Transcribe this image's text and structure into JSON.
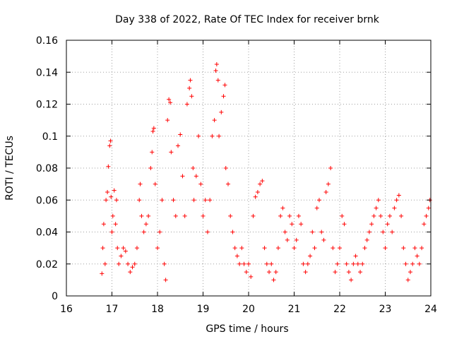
{
  "chart_data": {
    "type": "scatter",
    "title": "Day 338 of 2022, Rate Of TEC Index for receiver brnk",
    "xlabel": "GPS time / hours",
    "ylabel": "ROTI / TECUs",
    "xlim": [
      16,
      24
    ],
    "ylim": [
      0,
      0.16
    ],
    "xticks": [
      "16",
      "17",
      "18",
      "19",
      "20",
      "21",
      "22",
      "23",
      "24"
    ],
    "yticks": [
      "0",
      "0.02",
      "0.04",
      "0.06",
      "0.08",
      "0.1",
      "0.12",
      "0.14",
      "0.16"
    ],
    "grid": true,
    "marker": "+",
    "color": "#ff0000",
    "points": [
      [
        16.78,
        0.014
      ],
      [
        16.8,
        0.03
      ],
      [
        16.82,
        0.045
      ],
      [
        16.85,
        0.02
      ],
      [
        16.87,
        0.06
      ],
      [
        16.9,
        0.065
      ],
      [
        16.92,
        0.081
      ],
      [
        16.95,
        0.094
      ],
      [
        16.97,
        0.097
      ],
      [
        16.98,
        0.062
      ],
      [
        17.0,
        0.04
      ],
      [
        17.02,
        0.05
      ],
      [
        17.05,
        0.066
      ],
      [
        17.08,
        0.045
      ],
      [
        17.1,
        0.06
      ],
      [
        17.12,
        0.03
      ],
      [
        17.15,
        0.02
      ],
      [
        17.2,
        0.025
      ],
      [
        17.25,
        0.03
      ],
      [
        17.3,
        0.028
      ],
      [
        17.35,
        0.02
      ],
      [
        17.4,
        0.015
      ],
      [
        17.45,
        0.018
      ],
      [
        17.5,
        0.02
      ],
      [
        17.55,
        0.03
      ],
      [
        17.6,
        0.06
      ],
      [
        17.62,
        0.07
      ],
      [
        17.65,
        0.05
      ],
      [
        17.7,
        0.04
      ],
      [
        17.75,
        0.045
      ],
      [
        17.8,
        0.05
      ],
      [
        17.85,
        0.08
      ],
      [
        17.88,
        0.09
      ],
      [
        17.9,
        0.103
      ],
      [
        17.92,
        0.105
      ],
      [
        17.95,
        0.07
      ],
      [
        18.0,
        0.03
      ],
      [
        18.05,
        0.04
      ],
      [
        18.1,
        0.06
      ],
      [
        18.15,
        0.02
      ],
      [
        18.18,
        0.01
      ],
      [
        18.22,
        0.11
      ],
      [
        18.25,
        0.123
      ],
      [
        18.28,
        0.121
      ],
      [
        18.3,
        0.09
      ],
      [
        18.35,
        0.06
      ],
      [
        18.4,
        0.05
      ],
      [
        18.45,
        0.094
      ],
      [
        18.5,
        0.101
      ],
      [
        18.55,
        0.075
      ],
      [
        18.6,
        0.05
      ],
      [
        18.65,
        0.12
      ],
      [
        18.7,
        0.13
      ],
      [
        18.72,
        0.135
      ],
      [
        18.75,
        0.125
      ],
      [
        18.78,
        0.08
      ],
      [
        18.8,
        0.06
      ],
      [
        18.85,
        0.075
      ],
      [
        18.9,
        0.1
      ],
      [
        18.95,
        0.07
      ],
      [
        19.0,
        0.05
      ],
      [
        19.05,
        0.06
      ],
      [
        19.1,
        0.04
      ],
      [
        19.15,
        0.06
      ],
      [
        19.2,
        0.1
      ],
      [
        19.25,
        0.11
      ],
      [
        19.28,
        0.141
      ],
      [
        19.3,
        0.145
      ],
      [
        19.33,
        0.135
      ],
      [
        19.35,
        0.1
      ],
      [
        19.4,
        0.115
      ],
      [
        19.45,
        0.125
      ],
      [
        19.48,
        0.132
      ],
      [
        19.5,
        0.08
      ],
      [
        19.55,
        0.07
      ],
      [
        19.6,
        0.05
      ],
      [
        19.65,
        0.04
      ],
      [
        19.7,
        0.03
      ],
      [
        19.75,
        0.025
      ],
      [
        19.8,
        0.02
      ],
      [
        19.85,
        0.03
      ],
      [
        19.9,
        0.02
      ],
      [
        19.95,
        0.015
      ],
      [
        20.0,
        0.02
      ],
      [
        20.05,
        0.012
      ],
      [
        20.1,
        0.05
      ],
      [
        20.15,
        0.062
      ],
      [
        20.2,
        0.065
      ],
      [
        20.25,
        0.07
      ],
      [
        20.3,
        0.072
      ],
      [
        20.35,
        0.03
      ],
      [
        20.4,
        0.02
      ],
      [
        20.45,
        0.015
      ],
      [
        20.5,
        0.02
      ],
      [
        20.55,
        0.01
      ],
      [
        20.6,
        0.015
      ],
      [
        20.65,
        0.03
      ],
      [
        20.7,
        0.05
      ],
      [
        20.75,
        0.055
      ],
      [
        20.8,
        0.04
      ],
      [
        20.85,
        0.035
      ],
      [
        20.9,
        0.05
      ],
      [
        20.95,
        0.045
      ],
      [
        21.0,
        0.03
      ],
      [
        21.05,
        0.035
      ],
      [
        21.1,
        0.05
      ],
      [
        21.15,
        0.045
      ],
      [
        21.2,
        0.02
      ],
      [
        21.25,
        0.015
      ],
      [
        21.3,
        0.02
      ],
      [
        21.35,
        0.025
      ],
      [
        21.4,
        0.04
      ],
      [
        21.45,
        0.03
      ],
      [
        21.5,
        0.055
      ],
      [
        21.55,
        0.06
      ],
      [
        21.6,
        0.04
      ],
      [
        21.65,
        0.035
      ],
      [
        21.7,
        0.065
      ],
      [
        21.75,
        0.07
      ],
      [
        21.8,
        0.08
      ],
      [
        21.85,
        0.03
      ],
      [
        21.9,
        0.015
      ],
      [
        21.95,
        0.02
      ],
      [
        22.0,
        0.03
      ],
      [
        22.05,
        0.05
      ],
      [
        22.1,
        0.045
      ],
      [
        22.15,
        0.02
      ],
      [
        22.2,
        0.015
      ],
      [
        22.25,
        0.01
      ],
      [
        22.3,
        0.02
      ],
      [
        22.35,
        0.025
      ],
      [
        22.4,
        0.02
      ],
      [
        22.45,
        0.015
      ],
      [
        22.5,
        0.02
      ],
      [
        22.55,
        0.03
      ],
      [
        22.6,
        0.035
      ],
      [
        22.65,
        0.04
      ],
      [
        22.7,
        0.045
      ],
      [
        22.75,
        0.05
      ],
      [
        22.8,
        0.055
      ],
      [
        22.85,
        0.06
      ],
      [
        22.9,
        0.05
      ],
      [
        22.95,
        0.04
      ],
      [
        23.0,
        0.03
      ],
      [
        23.05,
        0.045
      ],
      [
        23.1,
        0.05
      ],
      [
        23.15,
        0.04
      ],
      [
        23.2,
        0.055
      ],
      [
        23.25,
        0.06
      ],
      [
        23.3,
        0.063
      ],
      [
        23.35,
        0.05
      ],
      [
        23.4,
        0.03
      ],
      [
        23.45,
        0.02
      ],
      [
        23.5,
        0.01
      ],
      [
        23.55,
        0.015
      ],
      [
        23.6,
        0.02
      ],
      [
        23.65,
        0.03
      ],
      [
        23.7,
        0.025
      ],
      [
        23.75,
        0.02
      ],
      [
        23.8,
        0.03
      ],
      [
        23.85,
        0.045
      ],
      [
        23.9,
        0.05
      ],
      [
        23.95,
        0.055
      ],
      [
        23.98,
        0.06
      ]
    ]
  }
}
